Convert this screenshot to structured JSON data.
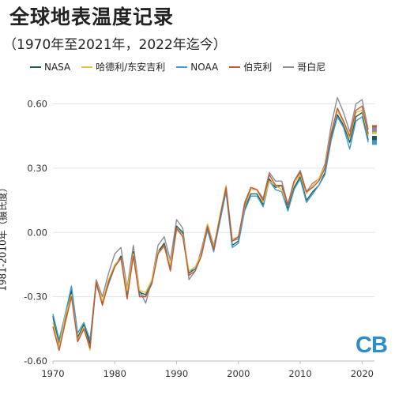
{
  "title": "全球地表温度记录",
  "subtitle": "（1970年至2021年，2022年迄今）",
  "logo_text": "CB",
  "chart_data": {
    "type": "line",
    "title": "全球地表温度记录",
    "subtitle": "（1970年至2021年，2022年迄今）",
    "xlabel": "",
    "ylabel": "1981-2010年（摄氏度）",
    "xlim": [
      1970,
      2022
    ],
    "ylim": [
      -0.6,
      0.65
    ],
    "xticks": [
      1970,
      1980,
      1990,
      2000,
      2010,
      2020
    ],
    "yticks": [
      -0.6,
      -0.3,
      0.0,
      0.3,
      0.6
    ],
    "ytick_labels": [
      "-0.60",
      "-0.30",
      "0.00",
      "0.30",
      "0.60"
    ],
    "grid": "horizontal",
    "legend": "top",
    "x": [
      1970,
      1971,
      1972,
      1973,
      1974,
      1975,
      1976,
      1977,
      1978,
      1979,
      1980,
      1981,
      1982,
      1983,
      1984,
      1985,
      1986,
      1987,
      1988,
      1989,
      1990,
      1991,
      1992,
      1993,
      1994,
      1995,
      1996,
      1997,
      1998,
      1999,
      2000,
      2001,
      2002,
      2003,
      2004,
      2005,
      2006,
      2007,
      2008,
      2009,
      2010,
      2011,
      2012,
      2013,
      2014,
      2015,
      2016,
      2017,
      2018,
      2019,
      2020,
      2021
    ],
    "series": [
      {
        "name": "NASA",
        "color": "#1f5c4f",
        "values": [
          -0.39,
          -0.52,
          -0.4,
          -0.27,
          -0.49,
          -0.43,
          -0.52,
          -0.24,
          -0.33,
          -0.24,
          -0.16,
          -0.11,
          -0.29,
          -0.09,
          -0.28,
          -0.29,
          -0.23,
          -0.09,
          -0.05,
          -0.16,
          0.03,
          0.0,
          -0.19,
          -0.17,
          -0.11,
          0.02,
          -0.08,
          0.06,
          0.2,
          -0.06,
          -0.04,
          0.11,
          0.18,
          0.18,
          0.13,
          0.25,
          0.21,
          0.22,
          0.11,
          0.21,
          0.26,
          0.15,
          0.19,
          0.22,
          0.28,
          0.44,
          0.55,
          0.5,
          0.42,
          0.54,
          0.56,
          0.43
        ]
      },
      {
        "name": "哈德利/东安吉利",
        "color": "#e3c44a",
        "values": [
          -0.42,
          -0.53,
          -0.39,
          -0.29,
          -0.5,
          -0.44,
          -0.55,
          -0.23,
          -0.32,
          -0.22,
          -0.15,
          -0.12,
          -0.27,
          -0.1,
          -0.27,
          -0.28,
          -0.22,
          -0.09,
          -0.07,
          -0.15,
          0.01,
          -0.01,
          -0.18,
          -0.16,
          -0.1,
          0.04,
          -0.07,
          0.08,
          0.22,
          -0.03,
          -0.02,
          0.12,
          0.2,
          0.2,
          0.14,
          0.24,
          0.22,
          0.2,
          0.13,
          0.23,
          0.27,
          0.18,
          0.22,
          0.25,
          0.31,
          0.47,
          0.57,
          0.51,
          0.44,
          0.56,
          0.57,
          0.45
        ]
      },
      {
        "name": "NOAA",
        "color": "#3b9ad4",
        "values": [
          -0.38,
          -0.5,
          -0.38,
          -0.25,
          -0.47,
          -0.42,
          -0.5,
          -0.24,
          -0.32,
          -0.24,
          -0.15,
          -0.12,
          -0.28,
          -0.1,
          -0.29,
          -0.3,
          -0.23,
          -0.1,
          -0.06,
          -0.16,
          0.02,
          -0.01,
          -0.18,
          -0.17,
          -0.1,
          0.01,
          -0.09,
          0.05,
          0.19,
          -0.07,
          -0.05,
          0.1,
          0.17,
          0.17,
          0.12,
          0.24,
          0.2,
          0.19,
          0.1,
          0.2,
          0.25,
          0.14,
          0.18,
          0.22,
          0.27,
          0.43,
          0.54,
          0.49,
          0.39,
          0.52,
          0.54,
          0.42
        ]
      },
      {
        "name": "伯克利",
        "color": "#c4572f",
        "values": [
          -0.44,
          -0.55,
          -0.42,
          -0.3,
          -0.51,
          -0.45,
          -0.54,
          -0.23,
          -0.34,
          -0.23,
          -0.16,
          -0.12,
          -0.31,
          -0.11,
          -0.3,
          -0.3,
          -0.24,
          -0.1,
          -0.06,
          -0.18,
          0.02,
          -0.02,
          -0.2,
          -0.18,
          -0.11,
          0.03,
          -0.08,
          0.07,
          0.21,
          -0.04,
          -0.02,
          0.13,
          0.21,
          0.2,
          0.15,
          0.27,
          0.22,
          0.22,
          0.13,
          0.24,
          0.28,
          0.19,
          0.21,
          0.24,
          0.3,
          0.46,
          0.58,
          0.52,
          0.45,
          0.57,
          0.59,
          0.46
        ]
      },
      {
        "name": "哥白尼",
        "color": "#8e8a99",
        "values": [
          -0.4,
          -0.52,
          -0.38,
          -0.27,
          -0.49,
          -0.43,
          -0.51,
          -0.22,
          -0.3,
          -0.19,
          -0.1,
          -0.07,
          -0.26,
          -0.06,
          -0.27,
          -0.33,
          -0.22,
          -0.06,
          -0.02,
          -0.13,
          0.06,
          0.02,
          -0.22,
          -0.18,
          -0.08,
          0.04,
          -0.06,
          0.06,
          0.19,
          -0.04,
          -0.03,
          0.14,
          0.21,
          0.2,
          0.16,
          0.28,
          0.24,
          0.24,
          0.13,
          0.24,
          0.29,
          0.19,
          0.23,
          0.25,
          0.32,
          0.5,
          0.63,
          0.56,
          0.47,
          0.6,
          0.62,
          0.48
        ]
      }
    ],
    "partial_2022": {
      "x": 2022,
      "values": [
        0.44,
        0.47,
        0.42,
        0.49,
        0.48
      ]
    }
  }
}
